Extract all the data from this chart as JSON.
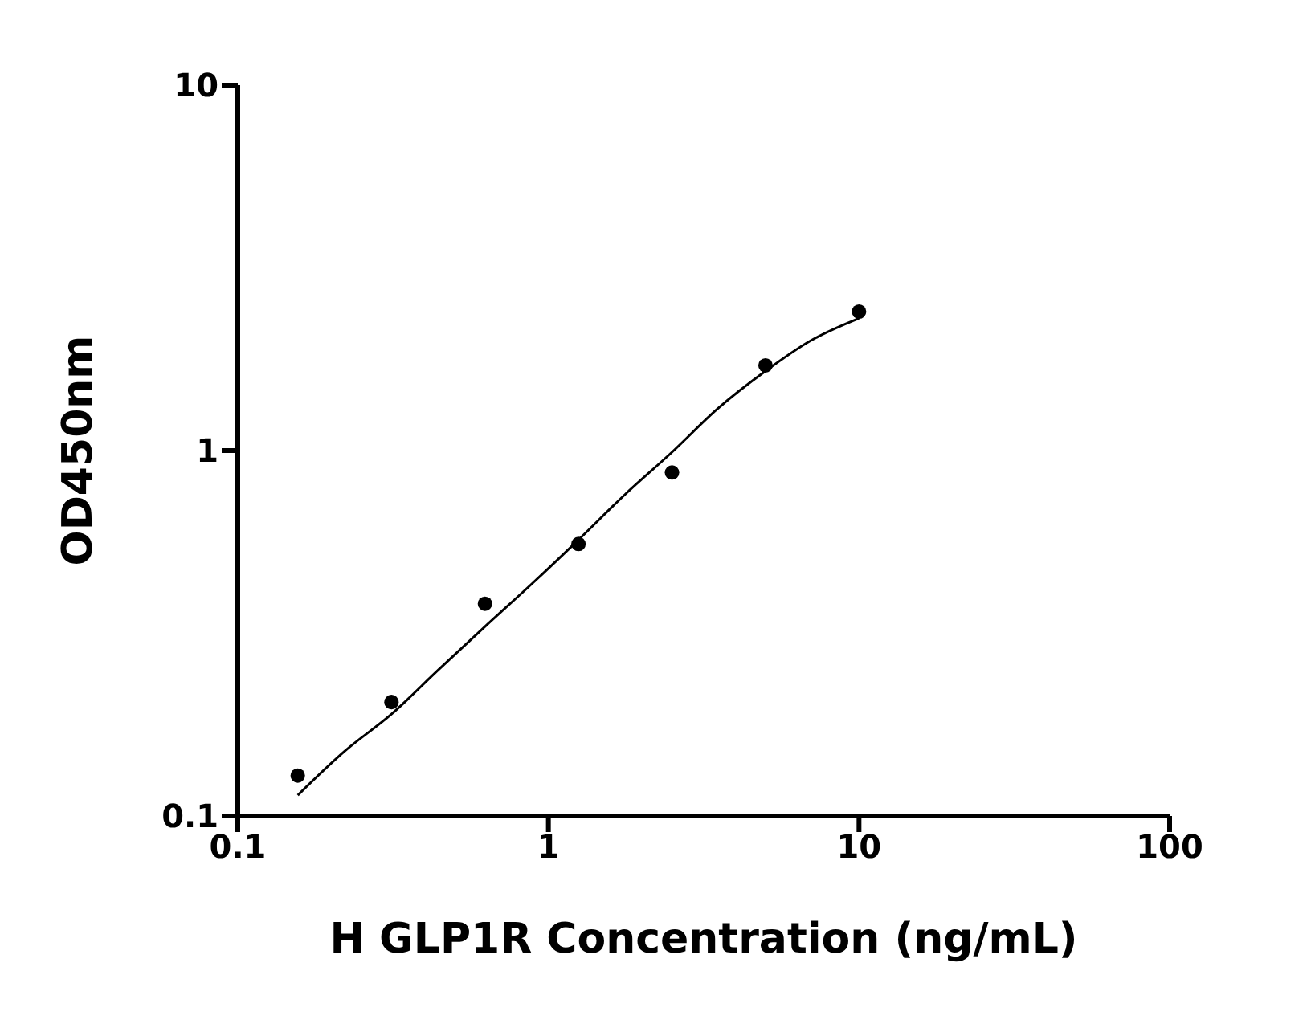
{
  "chart_data": {
    "type": "scatter",
    "xlabel": "H GLP1R Concentration (ng/mL)",
    "ylabel": "OD450nm",
    "log": "xy",
    "xlim": [
      0.1,
      100
    ],
    "xticks": [
      0.1,
      1,
      10,
      100
    ],
    "ylim": [
      0.1,
      10
    ],
    "yticks": [
      0.1,
      1,
      10
    ],
    "grid": false,
    "series": [
      {
        "color": "#000000",
        "marker": "circle",
        "x": [
          0.156,
          0.3125,
          0.625,
          1.25,
          2.5,
          5,
          10
        ],
        "values": [
          0.129,
          0.205,
          0.381,
          0.555,
          0.871,
          1.71,
          2.4
        ]
      },
      {
        "type": "line",
        "color": "#000000",
        "marker": "none",
        "line_style": "solid",
        "x": [
          0.156,
          0.22,
          0.3125,
          0.44,
          0.625,
          0.88,
          1.25,
          1.77,
          2.5,
          3.5,
          5,
          7,
          10
        ],
        "values": [
          0.114,
          0.15,
          0.19,
          0.25,
          0.33,
          0.43,
          0.57,
          0.76,
          0.99,
          1.3,
          1.65,
          2.0,
          2.3
        ]
      }
    ]
  }
}
